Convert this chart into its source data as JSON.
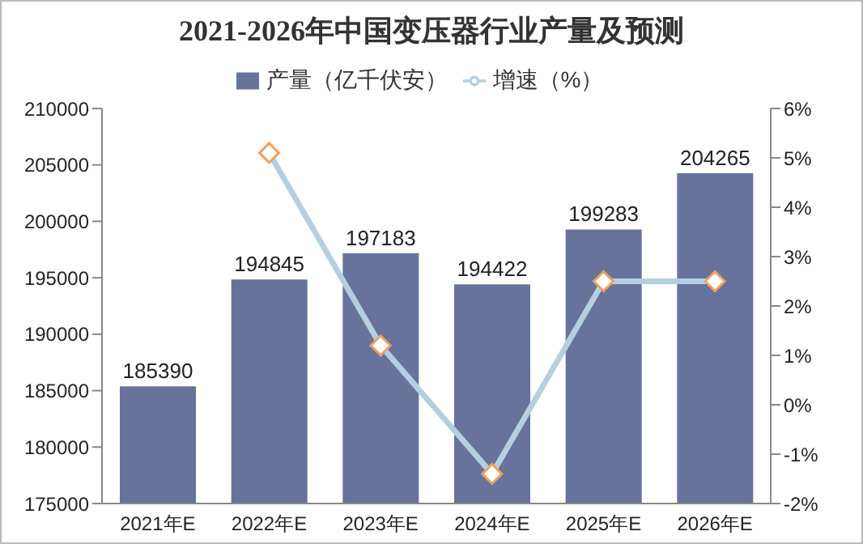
{
  "chart_data": {
    "type": "bar",
    "title": "2021-2026年中国变压器行业产量及预测",
    "categories": [
      "2021年E",
      "2022年E",
      "2023年E",
      "2024年E",
      "2025年E",
      "2026年E"
    ],
    "series": [
      {
        "name": "产量（亿千伏安）",
        "color": "#67739b",
        "values": [
          185390,
          194845,
          197183,
          194422,
          199283,
          204265
        ],
        "data_labels": true
      },
      {
        "name": "增速（%）",
        "type": "line",
        "axis": "y2",
        "color": "#b4d0e0",
        "values": [
          null,
          5.1,
          1.2,
          -1.4,
          2.5,
          2.5
        ],
        "marker": "diamond"
      }
    ],
    "ylim": [
      175000,
      210000
    ],
    "yticks": [
      175000,
      180000,
      185000,
      190000,
      195000,
      200000,
      205000,
      210000
    ],
    "y2lim": [
      -2,
      6
    ],
    "y2ticks": [
      {
        "value": -2,
        "label": "-2%"
      },
      {
        "value": -1,
        "label": "-1%"
      },
      {
        "value": 0,
        "label": "0%"
      },
      {
        "value": 1,
        "label": "1%"
      },
      {
        "value": 2,
        "label": "2%"
      },
      {
        "value": 3,
        "label": "3%"
      },
      {
        "value": 4,
        "label": "4%"
      },
      {
        "value": 5,
        "label": "5%"
      },
      {
        "value": 6,
        "label": "6%"
      }
    ],
    "grid": false,
    "legend": "top"
  }
}
